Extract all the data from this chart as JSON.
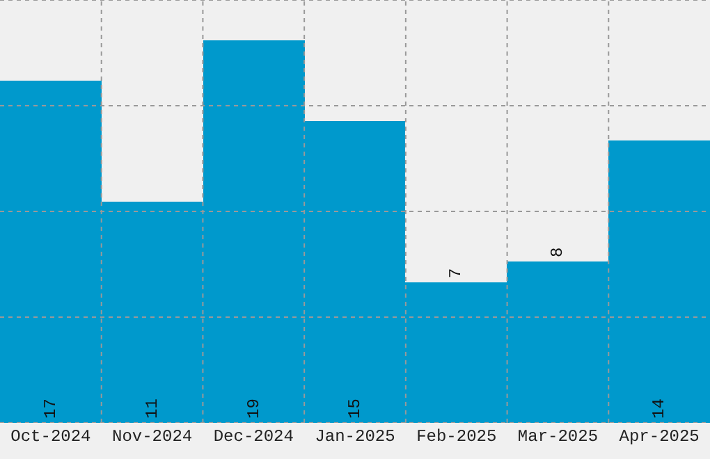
{
  "chart_data": {
    "type": "bar",
    "categories": [
      "Oct-2024",
      "Nov-2024",
      "Dec-2024",
      "Jan-2025",
      "Feb-2025",
      "Mar-2025",
      "Apr-2025"
    ],
    "values": [
      17,
      11,
      19,
      15,
      7,
      8,
      14
    ],
    "color": "#0099cc",
    "ylim": [
      0,
      21
    ],
    "yticks": [
      {
        "value": 0,
        "label": null
      },
      {
        "value": 5.25,
        "label": null
      },
      {
        "value": 10.5,
        "label": null
      },
      {
        "value": 15.75,
        "label": null
      },
      {
        "value": 21,
        "label": null
      }
    ],
    "tick_labels": "x",
    "grid": true,
    "data_labels": true
  }
}
